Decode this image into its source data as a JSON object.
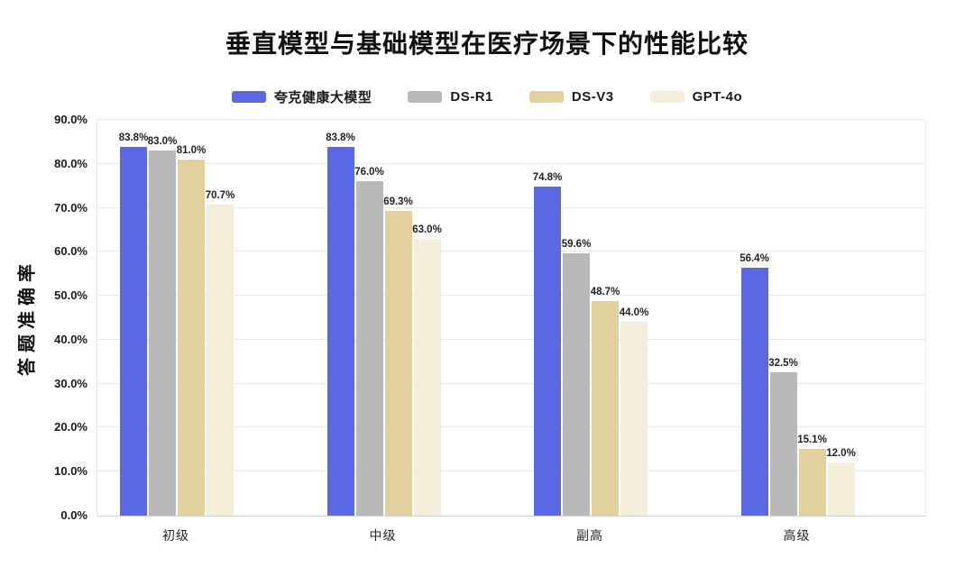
{
  "chart_data": {
    "type": "bar",
    "title": "垂直模型与基础模型在医疗场景下的性能比较",
    "ylabel": "答题准确率",
    "xlabel": "",
    "categories": [
      "初级",
      "中级",
      "副高",
      "高级"
    ],
    "series": [
      {
        "name": "夸克健康大模型",
        "color": "#5a68e4",
        "values": [
          83.8,
          83.8,
          74.8,
          56.4
        ]
      },
      {
        "name": "DS-R1",
        "color": "#b9b9b9",
        "values": [
          83.0,
          76.0,
          59.6,
          32.5
        ]
      },
      {
        "name": "DS-V3",
        "color": "#e2d09d",
        "values": [
          81.0,
          69.3,
          48.7,
          15.1
        ]
      },
      {
        "name": "GPT-4o",
        "color": "#f3edda",
        "values": [
          70.7,
          63.0,
          44.0,
          12.0
        ]
      }
    ],
    "ylim": [
      0,
      90
    ],
    "grid": true,
    "legend_position": "top",
    "value_label_suffix": "%",
    "yticks": [
      {
        "value": 0,
        "label": "0.0%"
      },
      {
        "value": 10,
        "label": "10.0%"
      },
      {
        "value": 20,
        "label": "20.0%"
      },
      {
        "value": 30,
        "label": "30.0%"
      },
      {
        "value": 40,
        "label": "40.0%"
      },
      {
        "value": 50,
        "label": "50.0%"
      },
      {
        "value": 60,
        "label": "60.0%"
      },
      {
        "value": 70,
        "label": "70.0%"
      },
      {
        "value": 80,
        "label": "80.0%"
      },
      {
        "value": 90,
        "label": "90.0%"
      }
    ]
  },
  "colors": {
    "gridline": "#e9e9e9",
    "axis": "#cfcfcf",
    "text": "#111111"
  }
}
